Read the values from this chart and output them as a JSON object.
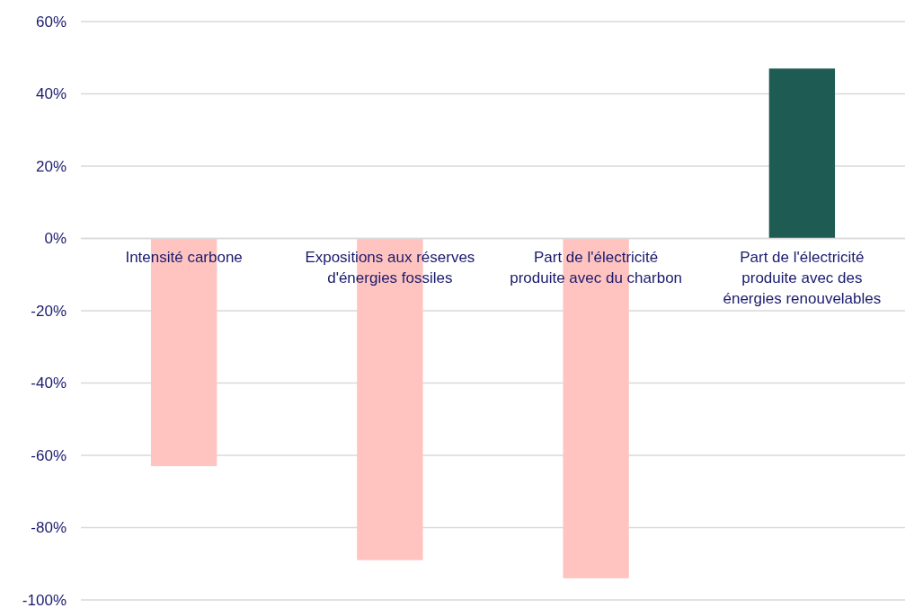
{
  "chart_data": {
    "type": "bar",
    "categories": [
      "Intensité carbone",
      "Expositions aux réserves d'énergies fossiles",
      "Part de l'électricité produite avec du charbon",
      "Part de l'électricité produite avec des énergies renouvelables"
    ],
    "values": [
      -63,
      -89,
      -94,
      47
    ],
    "colors": [
      "#ffc4c0",
      "#ffc4c0",
      "#ffc4c0",
      "#1e5c53"
    ],
    "ylim": [
      -100,
      60
    ],
    "yticks": [
      {
        "value": -100,
        "label": "-100%"
      },
      {
        "value": -80,
        "label": "-80%"
      },
      {
        "value": -60,
        "label": "-60%"
      },
      {
        "value": -40,
        "label": "-40%"
      },
      {
        "value": -20,
        "label": "-20%"
      },
      {
        "value": 0,
        "label": "0%"
      },
      {
        "value": 20,
        "label": "20%"
      },
      {
        "value": 40,
        "label": "40%"
      },
      {
        "value": 60,
        "label": "60%"
      }
    ],
    "grid": "y"
  }
}
